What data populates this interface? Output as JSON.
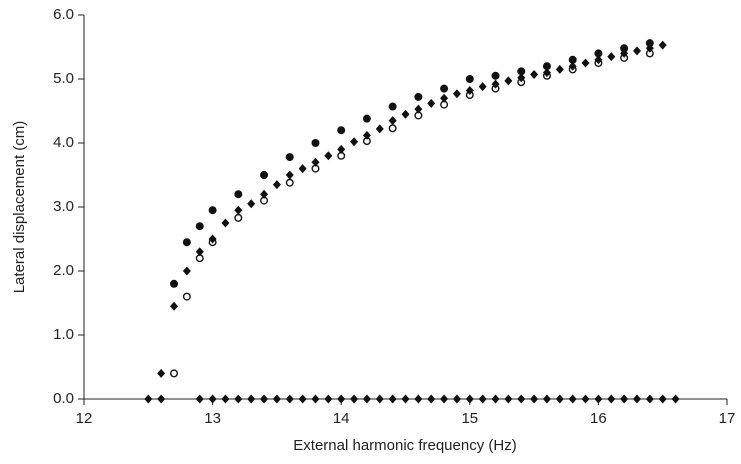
{
  "chart_data": {
    "type": "scatter",
    "x_label": "External harmonic frequency (Hz)",
    "y_label": "Lateral displacement (cm)",
    "xlim": [
      12,
      17
    ],
    "xticks": [
      12,
      13,
      14,
      15,
      16,
      17
    ],
    "ylim": [
      0,
      6
    ],
    "yticks": [
      {
        "value": 0,
        "label": "0.0"
      },
      {
        "value": 1,
        "label": "1.0"
      },
      {
        "value": 2,
        "label": "2.0"
      },
      {
        "value": 3,
        "label": "3.0"
      },
      {
        "value": 4,
        "label": "4.0"
      },
      {
        "value": 5,
        "label": "5.0"
      },
      {
        "value": 6,
        "label": "6.0"
      }
    ],
    "grid": false,
    "series": [
      {
        "marker": "filled-circle",
        "color": "#111111",
        "x": [
          12.7,
          12.8,
          12.9,
          13.0,
          13.2,
          13.4,
          13.6,
          13.8,
          14.0,
          14.2,
          14.4,
          14.6,
          14.8,
          15.0,
          15.2,
          15.4,
          15.6,
          15.8,
          16.0,
          16.2,
          16.4
        ],
        "values": [
          1.8,
          2.45,
          2.7,
          2.95,
          3.2,
          3.5,
          3.78,
          4.0,
          4.2,
          4.38,
          4.57,
          4.72,
          4.85,
          5.0,
          5.05,
          5.12,
          5.2,
          5.3,
          5.4,
          5.48,
          5.56
        ]
      },
      {
        "marker": "open-circle",
        "color": "#111111",
        "x": [
          12.7,
          12.8,
          12.9,
          13.0,
          13.2,
          13.4,
          13.6,
          13.8,
          14.0,
          14.2,
          14.4,
          14.6,
          14.8,
          15.0,
          15.2,
          15.4,
          15.6,
          15.8,
          16.0,
          16.2,
          16.4
        ],
        "values": [
          0.4,
          1.6,
          2.2,
          2.45,
          2.83,
          3.1,
          3.38,
          3.6,
          3.8,
          4.03,
          4.23,
          4.43,
          4.6,
          4.75,
          4.85,
          4.95,
          5.05,
          5.15,
          5.25,
          5.33,
          5.4
        ]
      },
      {
        "marker": "diamond",
        "color": "#111111",
        "x": [
          12.6,
          12.7,
          12.8,
          12.9,
          13.0,
          13.1,
          13.2,
          13.3,
          13.4,
          13.5,
          13.6,
          13.7,
          13.8,
          13.9,
          14.0,
          14.1,
          14.2,
          14.3,
          14.4,
          14.5,
          14.6,
          14.7,
          14.8,
          14.9,
          15.0,
          15.1,
          15.2,
          15.3,
          15.4,
          15.5,
          15.6,
          15.7,
          15.8,
          15.9,
          16.0,
          16.1,
          16.2,
          16.3,
          16.4,
          16.5
        ],
        "values": [
          0.4,
          1.45,
          2.0,
          2.3,
          2.5,
          2.75,
          2.95,
          3.05,
          3.2,
          3.35,
          3.5,
          3.6,
          3.7,
          3.8,
          3.9,
          4.02,
          4.12,
          4.22,
          4.35,
          4.45,
          4.53,
          4.62,
          4.7,
          4.77,
          4.82,
          4.88,
          4.92,
          4.97,
          5.02,
          5.07,
          5.1,
          5.15,
          5.2,
          5.25,
          5.3,
          5.35,
          5.4,
          5.44,
          5.48,
          5.53
        ]
      },
      {
        "marker": "diamond",
        "color": "#111111",
        "x": [
          12.5,
          12.6,
          12.9,
          13.0,
          13.1,
          13.2,
          13.3,
          13.4,
          13.5,
          13.6,
          13.7,
          13.8,
          13.9,
          14.0,
          14.1,
          14.2,
          14.3,
          14.4,
          14.5,
          14.6,
          14.7,
          14.8,
          14.9,
          15.0,
          15.1,
          15.2,
          15.3,
          15.4,
          15.5,
          15.6,
          15.7,
          15.8,
          15.9,
          16.0,
          16.1,
          16.2,
          16.3,
          16.4,
          16.5,
          16.6
        ],
        "values": [
          0,
          0,
          0,
          0,
          0,
          0,
          0,
          0,
          0,
          0,
          0,
          0,
          0,
          0,
          0,
          0,
          0,
          0,
          0,
          0,
          0,
          0,
          0,
          0,
          0,
          0,
          0,
          0,
          0,
          0,
          0,
          0,
          0,
          0,
          0,
          0,
          0,
          0,
          0,
          0
        ]
      }
    ]
  }
}
